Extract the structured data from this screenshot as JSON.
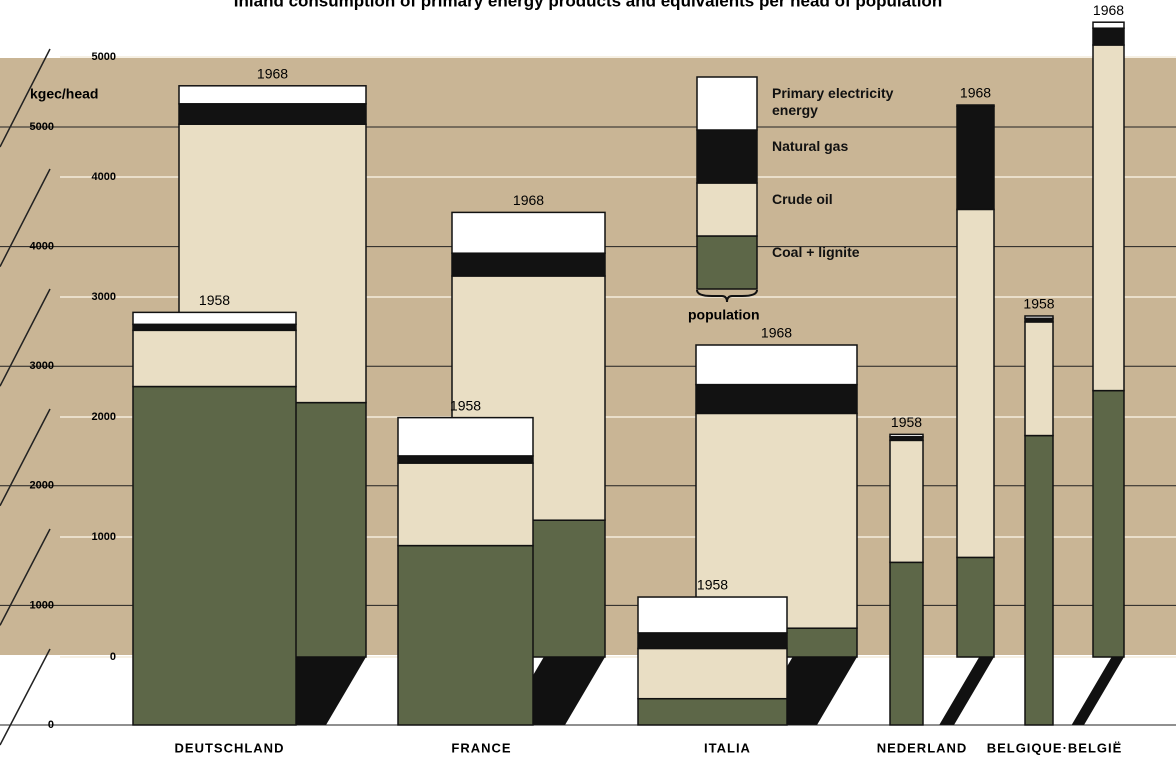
{
  "chart_data": {
    "type": "stacked-bar",
    "title": "Inland consumption of primary energy products and equivalents per head of population",
    "y_label": "kgec/head",
    "legend_note": "population",
    "categories": [
      "DEUTSCHLAND",
      "FRANCE",
      "ITALIA",
      "NEDERLAND",
      "BELGIQUE·BELGIË"
    ],
    "years": [
      "1958",
      "1968"
    ],
    "series": [
      {
        "name": "Coal + lignite",
        "color": "#5d6748",
        "values": [
          [
            2830,
            2120
          ],
          [
            1500,
            1140
          ],
          [
            220,
            240
          ],
          [
            1360,
            830
          ],
          [
            2420,
            2220
          ]
        ]
      },
      {
        "name": "Crude oil",
        "color": "#e9dec4",
        "values": [
          [
            470,
            2320
          ],
          [
            690,
            2035
          ],
          [
            420,
            1790
          ],
          [
            1020,
            2900
          ],
          [
            950,
            2880
          ]
        ]
      },
      {
        "name": "Natural gas",
        "color": "#121212",
        "values": [
          [
            50,
            170
          ],
          [
            60,
            190
          ],
          [
            130,
            240
          ],
          [
            30,
            860
          ],
          [
            30,
            140
          ]
        ]
      },
      {
        "name": "Primary electricity energy",
        "color": "#ffffff",
        "values": [
          [
            100,
            150
          ],
          [
            320,
            340
          ],
          [
            300,
            330
          ],
          [
            20,
            10
          ],
          [
            20,
            50
          ]
        ]
      }
    ],
    "ylim": [
      0,
      5000
    ],
    "yticks": [
      0,
      1000,
      2000,
      3000,
      4000,
      5000
    ],
    "y2lim": [
      0,
      5000
    ],
    "y2ticks": [
      0,
      1000,
      2000,
      3000,
      4000,
      5000
    ],
    "grid": true
  }
}
